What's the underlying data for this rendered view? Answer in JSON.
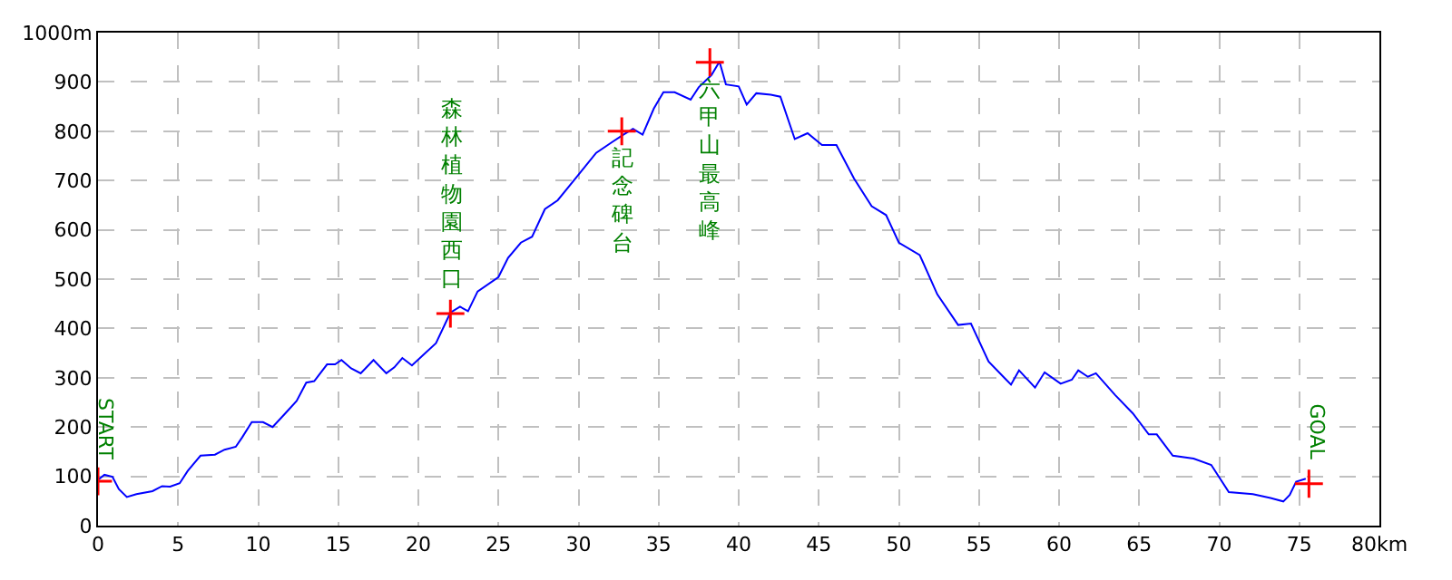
{
  "chart_data": {
    "type": "line",
    "series": [
      {
        "color": "#0000ff",
        "marker": "none",
        "x": [
          0,
          0.4,
          0.9,
          1.3,
          1.8,
          2.4,
          3.4,
          4,
          4.5,
          5.1,
          5.6,
          6.4,
          7.3,
          7.9,
          8.6,
          9,
          9.6,
          10.3,
          10.9,
          11.7,
          12.4,
          13,
          13.5,
          14.3,
          14.8,
          15.2,
          15.8,
          16.4,
          17.2,
          18,
          18.5,
          19,
          19.6,
          20.3,
          21.1,
          22,
          22.6,
          23.1,
          23.7,
          25,
          25.6,
          26.4,
          27.1,
          27.9,
          28.7,
          29.8,
          31.1,
          32.1,
          32.8,
          33.4,
          34,
          34.7,
          35.3,
          36,
          37,
          37.5,
          38.3,
          38.8,
          39.2,
          40,
          40.5,
          41.1,
          42,
          42.6,
          43.5,
          44.3,
          45.2,
          46.1,
          47.2,
          48.3,
          49.2,
          50,
          51.3,
          52.4,
          53.7,
          54.5,
          55.6,
          56.7,
          57,
          57.5,
          58.5,
          59.1,
          60.1,
          60.8,
          61.2,
          61.8,
          62.3,
          63.5,
          64.6,
          65.6,
          66.1,
          67.1,
          68.4,
          69.5,
          70.6,
          72.1,
          73.2,
          74,
          74.4,
          74.8,
          75.4
        ],
        "values": [
          93,
          103,
          99,
          74,
          58,
          64,
          70,
          80,
          79,
          86,
          111,
          142,
          144,
          154,
          160,
          179,
          210,
          210,
          200,
          228,
          253,
          290,
          293,
          327,
          327,
          336,
          319,
          309,
          336,
          309,
          321,
          340,
          325,
          346,
          370,
          432,
          444,
          435,
          475,
          504,
          543,
          574,
          586,
          642,
          660,
          704,
          756,
          778,
          793,
          805,
          793,
          846,
          879,
          879,
          864,
          889,
          914,
          941,
          895,
          891,
          854,
          877,
          874,
          870,
          784,
          796,
          772,
          772,
          704,
          648,
          630,
          574,
          549,
          469,
          407,
          410,
          333,
          296,
          286,
          315,
          280,
          311,
          288,
          296,
          315,
          302,
          309,
          265,
          228,
          185,
          185,
          142,
          136,
          123,
          68,
          64,
          56,
          49,
          62,
          89,
          95
        ]
      },
      {
        "type": "scatter",
        "color": "#ff0000",
        "marker": "cross",
        "x": [
          0,
          22,
          32.7,
          38.2,
          75.6
        ],
        "values": [
          90,
          430,
          800,
          940,
          85
        ]
      }
    ],
    "annotations": [
      {
        "text": "START",
        "x": 0,
        "y": 90
      },
      {
        "text": "森林植物園西口",
        "x": 22,
        "y": 430
      },
      {
        "text": "記念碑台",
        "x": 32.7,
        "y": 800
      },
      {
        "text": "六甲山最高峰",
        "x": 38.2,
        "y": 940
      },
      {
        "text": "GOAL",
        "x": 75.6,
        "y": 85
      }
    ],
    "xlim": [
      0,
      80
    ],
    "xticks": [
      0,
      5,
      10,
      15,
      20,
      25,
      30,
      35,
      40,
      45,
      50,
      55,
      60,
      65,
      70,
      75,
      {
        "value": 80,
        "label": "80km"
      }
    ],
    "ylim": [
      0,
      1000
    ],
    "yticks": [
      0,
      100,
      200,
      300,
      400,
      500,
      600,
      700,
      800,
      900,
      {
        "value": 1000,
        "label": "1000m"
      }
    ],
    "grid": true
  }
}
